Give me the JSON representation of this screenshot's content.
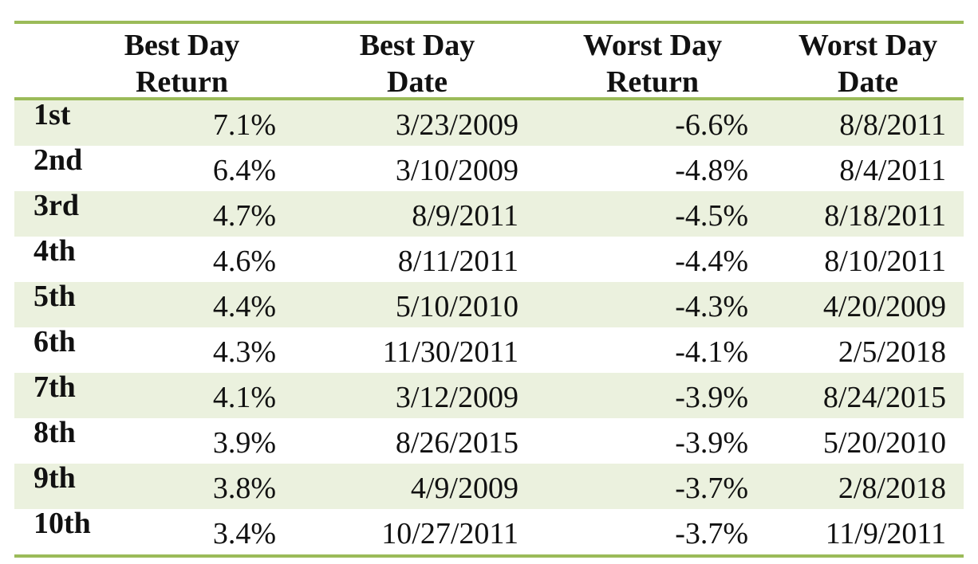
{
  "chart_data": {
    "type": "table",
    "columns": [
      "",
      "Best Day Return",
      "Best Day Date",
      "Worst Day Return",
      "Worst Day Date"
    ],
    "header": {
      "best_return": [
        "Best Day",
        "Return"
      ],
      "best_date": [
        "Best Day",
        "Date"
      ],
      "worst_return": [
        "Worst Day",
        "Return"
      ],
      "worst_date": [
        "Worst Day",
        "Date"
      ]
    },
    "rows": [
      {
        "rank": "1st",
        "best_return": "7.1%",
        "best_date": "3/23/2009",
        "worst_return": "-6.6%",
        "worst_date": "8/8/2011"
      },
      {
        "rank": "2nd",
        "best_return": "6.4%",
        "best_date": "3/10/2009",
        "worst_return": "-4.8%",
        "worst_date": "8/4/2011"
      },
      {
        "rank": "3rd",
        "best_return": "4.7%",
        "best_date": "8/9/2011",
        "worst_return": "-4.5%",
        "worst_date": "8/18/2011"
      },
      {
        "rank": "4th",
        "best_return": "4.6%",
        "best_date": "8/11/2011",
        "worst_return": "-4.4%",
        "worst_date": "8/10/2011"
      },
      {
        "rank": "5th",
        "best_return": "4.4%",
        "best_date": "5/10/2010",
        "worst_return": "-4.3%",
        "worst_date": "4/20/2009"
      },
      {
        "rank": "6th",
        "best_return": "4.3%",
        "best_date": "11/30/2011",
        "worst_return": "-4.1%",
        "worst_date": "2/5/2018"
      },
      {
        "rank": "7th",
        "best_return": "4.1%",
        "best_date": "3/12/2009",
        "worst_return": "-3.9%",
        "worst_date": "8/24/2015"
      },
      {
        "rank": "8th",
        "best_return": "3.9%",
        "best_date": "8/26/2015",
        "worst_return": "-3.9%",
        "worst_date": "5/20/2010"
      },
      {
        "rank": "9th",
        "best_return": "3.8%",
        "best_date": "4/9/2009",
        "worst_return": "-3.7%",
        "worst_date": "2/8/2018"
      },
      {
        "rank": "10th",
        "best_return": "3.4%",
        "best_date": "10/27/2011",
        "worst_return": "-3.7%",
        "worst_date": "11/9/2011"
      }
    ],
    "colors": {
      "rule": "#9bbb59",
      "shaded_row": "#ebf1de",
      "text": "#111111"
    }
  }
}
